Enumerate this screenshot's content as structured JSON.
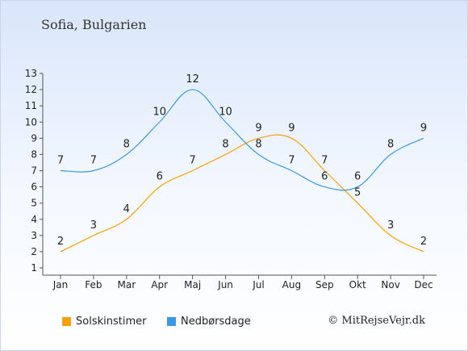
{
  "title": "Sofia, Bulgarien",
  "credit": "© MitRejseVejr.dk",
  "chart_data": {
    "type": "line",
    "categories": [
      "Jan",
      "Feb",
      "Mar",
      "Apr",
      "Maj",
      "Jun",
      "Jul",
      "Aug",
      "Sep",
      "Okt",
      "Nov",
      "Dec"
    ],
    "ylim": [
      1,
      13
    ],
    "yticks": [
      "1",
      "2",
      "3",
      "4",
      "5",
      "6",
      "7",
      "8",
      "9",
      "10",
      "11",
      "12",
      "13"
    ],
    "grid": false,
    "legend_position": "bottom-left",
    "series": [
      {
        "name": "Solskinstimer",
        "color": "#f5a10f",
        "values": [
          2,
          3,
          4,
          6,
          7,
          8,
          9,
          9,
          7,
          5,
          3,
          2
        ]
      },
      {
        "name": "Nedbørsdage",
        "color": "#3a98e0",
        "values": [
          7,
          7,
          8,
          10,
          12,
          10,
          8,
          7,
          6,
          6,
          8,
          9
        ]
      }
    ]
  }
}
